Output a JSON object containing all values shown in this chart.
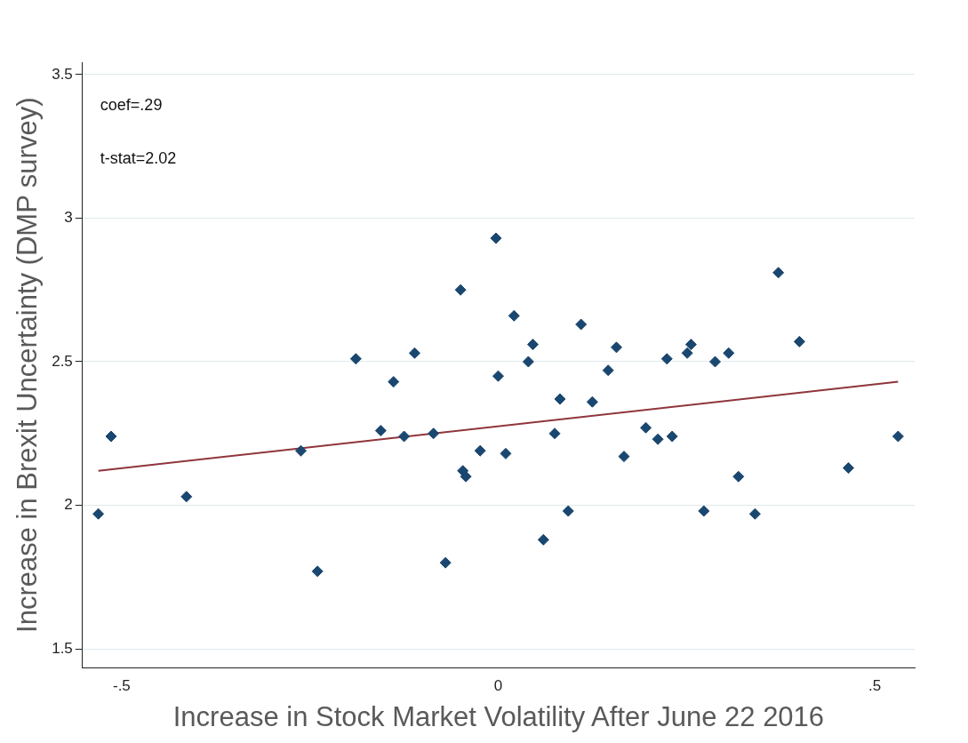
{
  "chart_data": {
    "type": "scatter",
    "xlabel": "Increase in Stock Market Volatility After June 22 2016",
    "ylabel": "Increase in Brexit Uncertainty (DMP survey)",
    "annotations": [
      "coef=.29",
      "t-stat=2.02"
    ],
    "xlim": [
      -0.552,
      0.553
    ],
    "ylim": [
      1.434,
      3.543
    ],
    "xticks": [
      {
        "value": -0.5,
        "label": "-.5"
      },
      0,
      {
        "value": 0.5,
        "label": ".5"
      }
    ],
    "yticks": [
      1.5,
      2,
      2.5,
      3,
      3.5
    ],
    "grid": "y",
    "legend": false,
    "marker": "diamond",
    "series": [
      {
        "type": "scatter",
        "color": "#1a476f",
        "x": [
          -0.531,
          -0.514,
          -0.414,
          -0.262,
          -0.24,
          -0.189,
          -0.156,
          -0.139,
          -0.125,
          -0.111,
          -0.086,
          -0.07,
          -0.05,
          -0.047,
          -0.043,
          -0.024,
          -0.003,
          0.0,
          0.01,
          0.021,
          0.04,
          0.046,
          0.06,
          0.075,
          0.082,
          0.093,
          0.11,
          0.125,
          0.146,
          0.157,
          0.167,
          0.196,
          0.212,
          0.224,
          0.231,
          0.251,
          0.256,
          0.273,
          0.288,
          0.306,
          0.319,
          0.341,
          0.372,
          0.4,
          0.465,
          0.531
        ],
        "values": [
          1.97,
          2.24,
          2.03,
          2.19,
          1.77,
          2.51,
          2.26,
          2.43,
          2.24,
          2.53,
          2.25,
          1.8,
          2.75,
          2.12,
          2.1,
          2.19,
          2.93,
          2.45,
          2.18,
          2.66,
          2.5,
          2.56,
          1.88,
          2.25,
          2.37,
          1.98,
          2.63,
          2.36,
          2.47,
          2.55,
          2.17,
          2.27,
          2.23,
          2.51,
          2.24,
          2.53,
          2.56,
          1.98,
          2.5,
          2.53,
          2.1,
          1.97,
          2.81,
          2.57,
          2.13,
          2.24
        ]
      },
      {
        "type": "line",
        "color": "#90353b",
        "marker": "none",
        "x": [
          -0.531,
          0.531
        ],
        "values": [
          2.12,
          2.43
        ]
      }
    ]
  }
}
